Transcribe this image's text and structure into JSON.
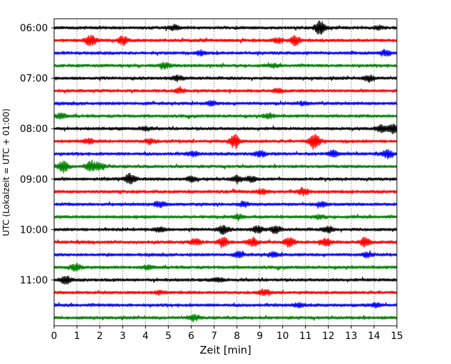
{
  "chart_data": {
    "type": "line",
    "title": "",
    "xlabel": "Zeit  [min]",
    "ylabel": "UTC (Lokalzeit = UTC + 01:00)",
    "xlim": [
      0,
      15
    ],
    "x_ticks": [
      0,
      1,
      2,
      3,
      4,
      5,
      6,
      7,
      8,
      9,
      10,
      11,
      12,
      13,
      14,
      15
    ],
    "x_tick_labels": [
      "0",
      "1",
      "2",
      "3",
      "4",
      "5",
      "6",
      "7",
      "8",
      "9",
      "10",
      "11",
      "12",
      "13",
      "14",
      "15"
    ],
    "y_tick_labels": [
      {
        "label": "06:00",
        "row": 0
      },
      {
        "label": "07:00",
        "row": 4
      },
      {
        "label": "08:00",
        "row": 8
      },
      {
        "label": "09:00",
        "row": 12
      },
      {
        "label": "10:00",
        "row": 16
      },
      {
        "label": "11:00",
        "row": 20
      }
    ],
    "grid": "x-dotted",
    "legend": "none",
    "colors": [
      "#000000",
      "#ff0000",
      "#0000ff",
      "#008000"
    ],
    "series": [
      {
        "start": "06:00",
        "bursts": [
          [
            5.25,
            0.3
          ],
          [
            11.65,
            1.0
          ],
          [
            14.2,
            0.2
          ]
        ]
      },
      {
        "start": "06:15",
        "bursts": [
          [
            1.6,
            0.8
          ],
          [
            3.0,
            0.55
          ],
          [
            10.55,
            0.6
          ],
          [
            9.8,
            0.3
          ]
        ]
      },
      {
        "start": "06:30",
        "bursts": [
          [
            6.4,
            0.3
          ],
          [
            14.5,
            0.35
          ]
        ]
      },
      {
        "start": "06:45",
        "bursts": [
          [
            4.85,
            0.4
          ],
          [
            9.6,
            0.2
          ]
        ]
      },
      {
        "start": "07:00",
        "bursts": [
          [
            5.4,
            0.3
          ],
          [
            13.8,
            0.4
          ]
        ]
      },
      {
        "start": "07:15",
        "bursts": [
          [
            5.5,
            0.3
          ],
          [
            9.8,
            0.25
          ]
        ]
      },
      {
        "start": "07:30",
        "bursts": [
          [
            6.9,
            0.25
          ],
          [
            10.9,
            0.2
          ]
        ]
      },
      {
        "start": "07:45",
        "bursts": [
          [
            0.3,
            0.35
          ],
          [
            9.4,
            0.3
          ]
        ]
      },
      {
        "start": "08:00",
        "bursts": [
          [
            4.0,
            0.25
          ],
          [
            14.3,
            0.45
          ],
          [
            14.85,
            0.7
          ]
        ]
      },
      {
        "start": "08:15",
        "bursts": [
          [
            7.9,
            0.9
          ],
          [
            11.4,
            1.0
          ],
          [
            4.2,
            0.35
          ],
          [
            1.5,
            0.3
          ]
        ]
      },
      {
        "start": "08:30",
        "bursts": [
          [
            9.0,
            0.4
          ],
          [
            12.2,
            0.4
          ],
          [
            14.6,
            0.5
          ],
          [
            6.1,
            0.3
          ]
        ]
      },
      {
        "start": "08:45",
        "bursts": [
          [
            0.4,
            0.75
          ],
          [
            1.6,
            0.7
          ],
          [
            2.0,
            0.5
          ]
        ]
      },
      {
        "start": "09:00",
        "bursts": [
          [
            3.35,
            0.8
          ],
          [
            8.0,
            0.4
          ],
          [
            8.6,
            0.35
          ],
          [
            6.0,
            0.3
          ]
        ]
      },
      {
        "start": "09:15",
        "bursts": [
          [
            10.9,
            0.45
          ],
          [
            9.1,
            0.3
          ]
        ]
      },
      {
        "start": "09:30",
        "bursts": [
          [
            4.6,
            0.35
          ],
          [
            8.3,
            0.3
          ],
          [
            11.7,
            0.3
          ]
        ]
      },
      {
        "start": "09:45",
        "bursts": [
          [
            8.1,
            0.3
          ],
          [
            11.6,
            0.25
          ]
        ]
      },
      {
        "start": "10:00",
        "bursts": [
          [
            7.4,
            0.55
          ],
          [
            8.9,
            0.45
          ],
          [
            9.7,
            0.45
          ],
          [
            12.0,
            0.4
          ],
          [
            4.6,
            0.3
          ]
        ]
      },
      {
        "start": "10:15",
        "bursts": [
          [
            7.4,
            0.6
          ],
          [
            8.7,
            0.55
          ],
          [
            10.3,
            0.6
          ],
          [
            11.9,
            0.55
          ],
          [
            13.6,
            0.6
          ],
          [
            6.2,
            0.4
          ]
        ]
      },
      {
        "start": "10:30",
        "bursts": [
          [
            8.1,
            0.35
          ],
          [
            9.6,
            0.3
          ],
          [
            13.7,
            0.3
          ]
        ]
      },
      {
        "start": "10:45",
        "bursts": [
          [
            0.95,
            0.45
          ],
          [
            4.1,
            0.25
          ]
        ]
      },
      {
        "start": "11:00",
        "bursts": [
          [
            0.5,
            0.55
          ],
          [
            7.2,
            0.25
          ]
        ]
      },
      {
        "start": "11:15",
        "bursts": [
          [
            9.2,
            0.4
          ],
          [
            4.6,
            0.2
          ]
        ]
      },
      {
        "start": "11:30",
        "bursts": [
          [
            10.7,
            0.25
          ],
          [
            14.1,
            0.25
          ]
        ]
      },
      {
        "start": "11:45",
        "bursts": [
          [
            6.1,
            0.4
          ]
        ]
      }
    ]
  }
}
